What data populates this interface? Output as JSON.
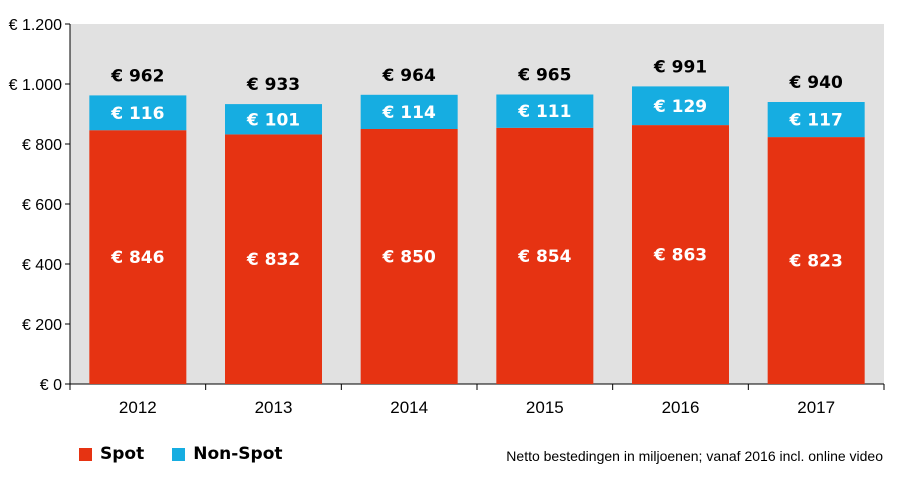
{
  "chart_data": {
    "type": "bar",
    "stacked": true,
    "categories": [
      "2012",
      "2013",
      "2014",
      "2015",
      "2016",
      "2017"
    ],
    "series": [
      {
        "name": "Spot",
        "values": [
          846,
          832,
          850,
          854,
          863,
          823
        ],
        "color": "#e63312"
      },
      {
        "name": "Non-Spot",
        "values": [
          116,
          101,
          114,
          111,
          129,
          117
        ],
        "color": "#16ade1"
      }
    ],
    "totals": [
      962,
      933,
      964,
      965,
      991,
      940
    ],
    "value_prefix": "€ ",
    "ylim": [
      0,
      1200
    ],
    "yticks": [
      0,
      200,
      400,
      600,
      800,
      1000,
      1200
    ],
    "ytick_labels": [
      "€ 0",
      "€ 200",
      "€ 400",
      "€ 600",
      "€ 800",
      "€ 1.000",
      "€ 1.200"
    ],
    "plot_background": "#e1e1e1",
    "grid": false,
    "legend_position": "bottom-left",
    "note": "Netto bestedingen in miljoenen; vanaf 2016 incl. online video"
  }
}
